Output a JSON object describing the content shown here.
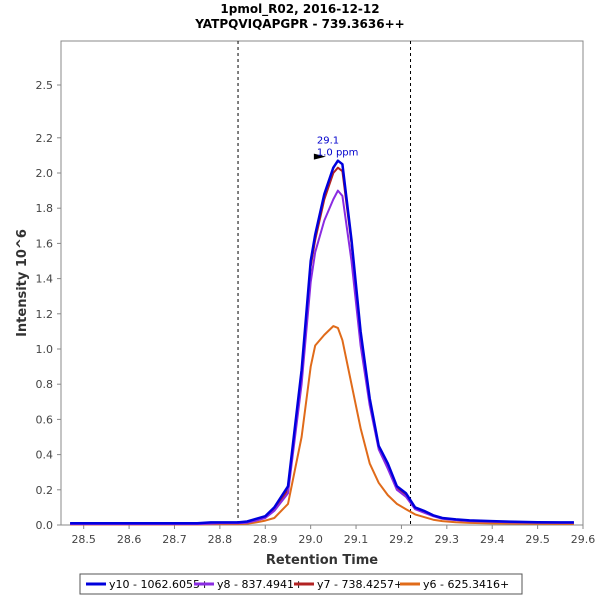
{
  "chart_data": {
    "type": "line",
    "title": "1pmol_R02, 2016-12-12",
    "subtitle": "YATPQVIQAPGPR - 739.3636++",
    "xlabel": "Retention Time",
    "ylabel": "Intensity 10^6",
    "xlim": [
      28.45,
      29.6
    ],
    "ylim": [
      0,
      2.75
    ],
    "xticks": [
      "28.5",
      "28.6",
      "28.7",
      "28.8",
      "28.9",
      "29.0",
      "29.1",
      "29.2",
      "29.3",
      "29.4",
      "29.5",
      "29.6"
    ],
    "xtick_values": [
      28.5,
      28.6,
      28.7,
      28.8,
      28.9,
      29.0,
      29.1,
      29.2,
      29.3,
      29.4,
      29.5,
      29.6
    ],
    "yticks": [
      "0.0",
      "0.2",
      "0.4",
      "0.6",
      "0.8",
      "1.0",
      "1.2",
      "1.4",
      "1.6",
      "1.8",
      "2.0",
      "2.2",
      "2.5"
    ],
    "ytick_values": [
      0.0,
      0.2,
      0.4,
      0.6,
      0.8,
      1.0,
      1.2,
      1.4,
      1.6,
      1.8,
      2.0,
      2.2,
      2.5
    ],
    "vlines": [
      28.84,
      29.22
    ],
    "x": [
      28.47,
      28.5,
      28.55,
      28.6,
      28.65,
      28.7,
      28.75,
      28.78,
      28.8,
      28.82,
      28.84,
      28.86,
      28.88,
      28.9,
      28.92,
      28.95,
      28.98,
      29.0,
      29.01,
      29.03,
      29.05,
      29.06,
      29.07,
      29.09,
      29.11,
      29.13,
      29.15,
      29.17,
      29.19,
      29.21,
      29.23,
      29.25,
      29.27,
      29.29,
      29.32,
      29.35,
      29.4,
      29.45,
      29.5,
      29.55,
      29.58
    ],
    "series": [
      {
        "name": "y10 - 1062.6055+",
        "color": "#0000dd",
        "values": [
          0.01,
          0.01,
          0.01,
          0.01,
          0.01,
          0.01,
          0.01,
          0.015,
          0.015,
          0.015,
          0.015,
          0.02,
          0.035,
          0.05,
          0.1,
          0.22,
          0.88,
          1.5,
          1.65,
          1.88,
          2.03,
          2.07,
          2.05,
          1.62,
          1.1,
          0.72,
          0.45,
          0.35,
          0.22,
          0.18,
          0.1,
          0.08,
          0.055,
          0.04,
          0.032,
          0.026,
          0.022,
          0.018,
          0.016,
          0.015,
          0.015
        ]
      },
      {
        "name": "y8 - 837.4941+",
        "color": "#8a2be2",
        "values": [
          0.005,
          0.005,
          0.005,
          0.005,
          0.005,
          0.005,
          0.005,
          0.008,
          0.01,
          0.01,
          0.01,
          0.013,
          0.025,
          0.04,
          0.08,
          0.18,
          0.8,
          1.38,
          1.55,
          1.73,
          1.85,
          1.9,
          1.87,
          1.5,
          1.02,
          0.68,
          0.43,
          0.32,
          0.2,
          0.16,
          0.09,
          0.07,
          0.05,
          0.035,
          0.028,
          0.022,
          0.018,
          0.015,
          0.013,
          0.012,
          0.012
        ]
      },
      {
        "name": "y7 - 738.4257+",
        "color": "#b22222",
        "values": [
          0.008,
          0.008,
          0.008,
          0.008,
          0.008,
          0.008,
          0.008,
          0.012,
          0.012,
          0.012,
          0.012,
          0.018,
          0.03,
          0.045,
          0.09,
          0.2,
          0.85,
          1.47,
          1.62,
          1.85,
          2.0,
          2.03,
          2.01,
          1.6,
          1.08,
          0.7,
          0.44,
          0.34,
          0.21,
          0.17,
          0.1,
          0.075,
          0.052,
          0.038,
          0.03,
          0.024,
          0.02,
          0.017,
          0.015,
          0.014,
          0.014
        ]
      },
      {
        "name": "y6 - 625.3416+",
        "color": "#e06b1a",
        "values": [
          0.003,
          0.003,
          0.003,
          0.003,
          0.003,
          0.003,
          0.003,
          0.005,
          0.005,
          0.005,
          0.005,
          0.008,
          0.015,
          0.025,
          0.04,
          0.12,
          0.5,
          0.9,
          1.02,
          1.08,
          1.13,
          1.12,
          1.05,
          0.8,
          0.55,
          0.35,
          0.24,
          0.17,
          0.12,
          0.09,
          0.06,
          0.045,
          0.03,
          0.022,
          0.016,
          0.012,
          0.009,
          0.008,
          0.007,
          0.006,
          0.006
        ]
      }
    ],
    "annotation": {
      "x": 29.06,
      "y": 2.07,
      "line1": "29.1",
      "line2": "1.0 ppm"
    },
    "legend_position": "bottom"
  }
}
